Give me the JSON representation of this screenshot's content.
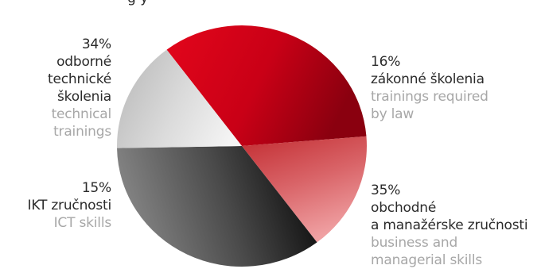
{
  "header_fragment": "g y",
  "chart_data": {
    "type": "pie",
    "title": "",
    "slices": [
      {
        "value": 34,
        "percent_label": "34%",
        "label_lines": [
          "odborné",
          "technické",
          "školenia"
        ],
        "label_en_lines": [
          "technical",
          "trainings"
        ],
        "colors": [
          "#e3061b",
          "#c90016",
          "#8a000f"
        ]
      },
      {
        "value": 16,
        "percent_label": "16%",
        "label_lines": [
          "zákonné školenia"
        ],
        "label_en_lines": [
          "trainings required",
          "by law"
        ],
        "colors": [
          "#c43035",
          "#d96468",
          "#f0a1a3"
        ]
      },
      {
        "value": 35,
        "percent_label": "35%",
        "label_lines": [
          "obchodné",
          "a manažérske zručnosti"
        ],
        "label_en_lines": [
          "business and",
          "managerial skills"
        ],
        "colors": [
          "#8c8c8c",
          "#4a4a4a",
          "#0c0c0c"
        ]
      },
      {
        "value": 15,
        "percent_label": "15%",
        "label_lines": [
          "IKT zručnosti"
        ],
        "label_en_lines": [
          "ICT skills"
        ],
        "colors": [
          "#bcbcbc",
          "#dadada",
          "#f4f4f4"
        ]
      }
    ]
  }
}
